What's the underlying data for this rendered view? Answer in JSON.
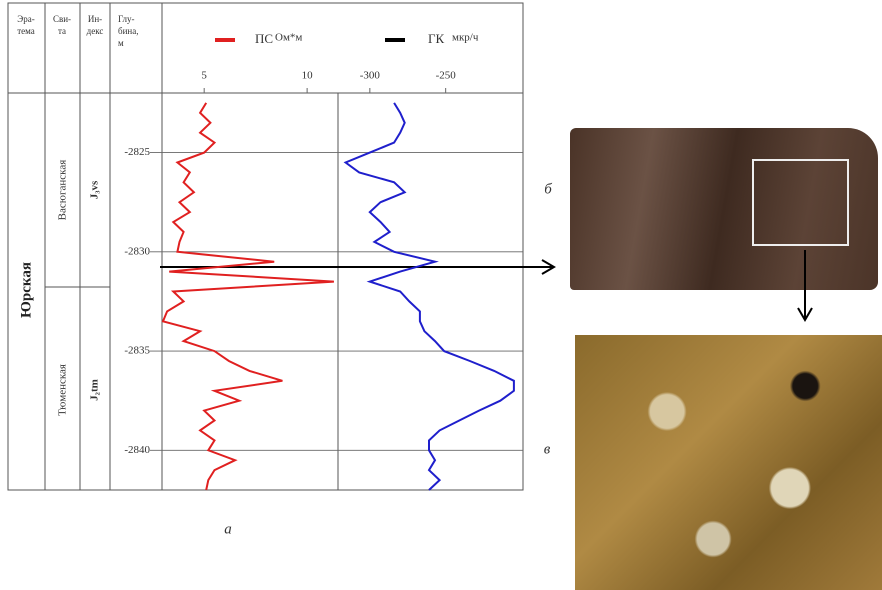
{
  "chart_data": {
    "type": "line",
    "orientation": "vertical",
    "depth": [
      -2822.5,
      -2823,
      -2823.5,
      -2824,
      -2824.5,
      -2825,
      -2825.5,
      -2826,
      -2826.5,
      -2827,
      -2827.5,
      -2828,
      -2828.5,
      -2829,
      -2829.5,
      -2830,
      -2830.5,
      -2831,
      -2831.5,
      -2832,
      -2832.5,
      -2833,
      -2833.5,
      -2834,
      -2834.5,
      -2835,
      -2835.5,
      -2836,
      -2836.5,
      -2837,
      -2837.5,
      -2838,
      -2838.5,
      -2839,
      -2839.5,
      -2840,
      -2840.5,
      -2841,
      -2841.5,
      -2842
    ],
    "ylim": [
      -2842,
      -2822
    ],
    "yticks": [
      -2825,
      -2830,
      -2835,
      -2840
    ],
    "grid": true,
    "series": [
      {
        "name": "ПС",
        "unit": "Ом*м",
        "color": "#e02020",
        "legend_color": "#e02020",
        "xlim": [
          3,
          11.5
        ],
        "xticks": [
          5,
          10
        ],
        "values": [
          5.1,
          4.8,
          5.3,
          4.8,
          5.5,
          5,
          3.7,
          4.3,
          4.0,
          4.5,
          3.8,
          4.3,
          3.5,
          4.0,
          3.8,
          3.7,
          8.4,
          3.3,
          11.3,
          3.5,
          4.0,
          3.2,
          3.0,
          4.8,
          4.0,
          5.5,
          6.2,
          7.2,
          8.8,
          5.5,
          6.7,
          5,
          5.5,
          4.8,
          5.5,
          5.2,
          6.5,
          5.5,
          5.2,
          5.1
        ]
      },
      {
        "name": "ГК",
        "unit": "мкр/ч",
        "color": "#1f1fcc",
        "legend_color": "#000000",
        "xlim": [
          -321,
          -199
        ],
        "xticks": [
          -300,
          -250
        ],
        "values": [
          -284,
          -280,
          -277,
          -280,
          -284,
          -300,
          -316,
          -307,
          -284,
          -277,
          -293,
          -300,
          -293,
          -287,
          -297,
          -284,
          -257,
          -280,
          -300,
          -280,
          -274,
          -267,
          -267,
          -264,
          -257,
          -251,
          -234,
          -218,
          -205,
          -205,
          -214,
          -228,
          -241,
          -254,
          -261,
          -261,
          -257,
          -261,
          -254,
          -261
        ]
      }
    ]
  },
  "table": {
    "headers": [
      [
        "Эра-",
        "тема"
      ],
      [
        "Сви-",
        "та"
      ],
      [
        "Ин-",
        "декс"
      ],
      [
        "Глу-",
        "бина,",
        "м"
      ]
    ],
    "era": "Юрская",
    "suites": [
      {
        "name": "Васюганская",
        "index": "J₃vs"
      },
      {
        "name": "Тюменская",
        "index": "J₂tm"
      }
    ]
  },
  "labels": {
    "log": "а",
    "core": "б",
    "thin_section": "в"
  }
}
